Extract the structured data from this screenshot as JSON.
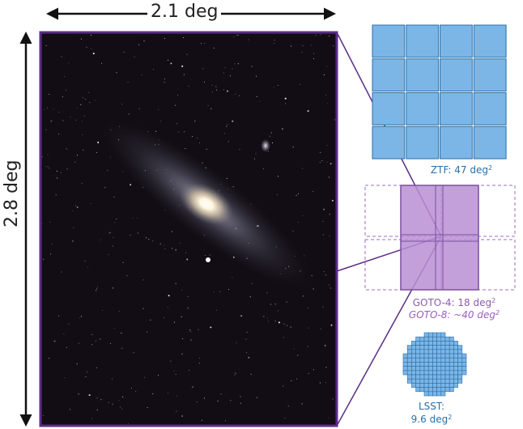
{
  "image": {
    "subject": "galaxy-photo",
    "width_label": "2.1 deg",
    "height_label": "2.8 deg"
  },
  "footprints": {
    "ztf": {
      "name": "ZTF",
      "value": "47",
      "unit": "deg",
      "exp": "2",
      "grid": "4x4",
      "color": "#7bb6e6",
      "edge": "#2b6fa8"
    },
    "goto4": {
      "name": "GOTO-4",
      "value": "18",
      "unit": "deg",
      "exp": "2",
      "grid": "2x2",
      "color": "#b88fd4",
      "edge": "#7a4fa0"
    },
    "goto8": {
      "name": "GOTO-8",
      "value": "~40",
      "unit": "deg",
      "exp": "2",
      "grid": "4x2",
      "style": "dashed"
    },
    "lsst": {
      "name": "LSST",
      "value": "9.6",
      "unit": "deg",
      "exp": "2",
      "shape": "circular-mosaic",
      "color": "#7bb6e6"
    }
  },
  "colors": {
    "frame": "#5b2d86",
    "text": "#222222",
    "ztf_text": "#2b6fa8",
    "goto_text": "#8a5bb0"
  }
}
